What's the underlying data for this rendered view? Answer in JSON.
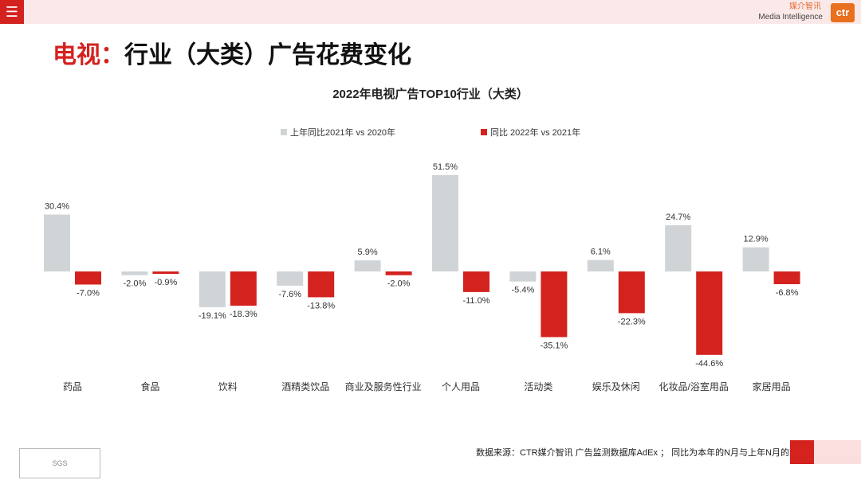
{
  "header": {
    "menu_icon": "☰",
    "logo_cn": "媒介智讯",
    "logo_en": "Media Intelligence",
    "logo_mark": "ctr"
  },
  "page_title": {
    "prefix": "电视：",
    "rest": "行业（大类）广告花费变化"
  },
  "colors": {
    "prev": "#d0d4d6",
    "curr": "#d4221f"
  },
  "chart_data": {
    "type": "bar",
    "title": "2022年电视广告TOP10行业（大类）",
    "categories": [
      "药品",
      "食品",
      "饮料",
      "酒精类饮品",
      "商业及服务性行业",
      "个人用品",
      "活动类",
      "娱乐及休闲",
      "化妆品/浴室用品",
      "家居用品"
    ],
    "series": [
      {
        "name": "上年同比2021年 vs 2020年",
        "values": [
          30.4,
          -2.0,
          -19.1,
          -7.6,
          5.9,
          51.5,
          -5.4,
          6.1,
          24.7,
          12.9
        ],
        "color": "#d0d4d6"
      },
      {
        "name": "同比 2022年 vs 2021年",
        "values": [
          -7.0,
          -0.9,
          -18.3,
          -13.8,
          -2.0,
          -11.0,
          -35.1,
          -22.3,
          -44.6,
          -6.8
        ],
        "color": "#d4221f"
      }
    ],
    "unit": "%"
  },
  "footer": {
    "source": "数据来源：CTR媒介智讯 广告监测数据库AdEx ； 同比为本年的N月与上年N月的对比",
    "badge": "SGS"
  }
}
